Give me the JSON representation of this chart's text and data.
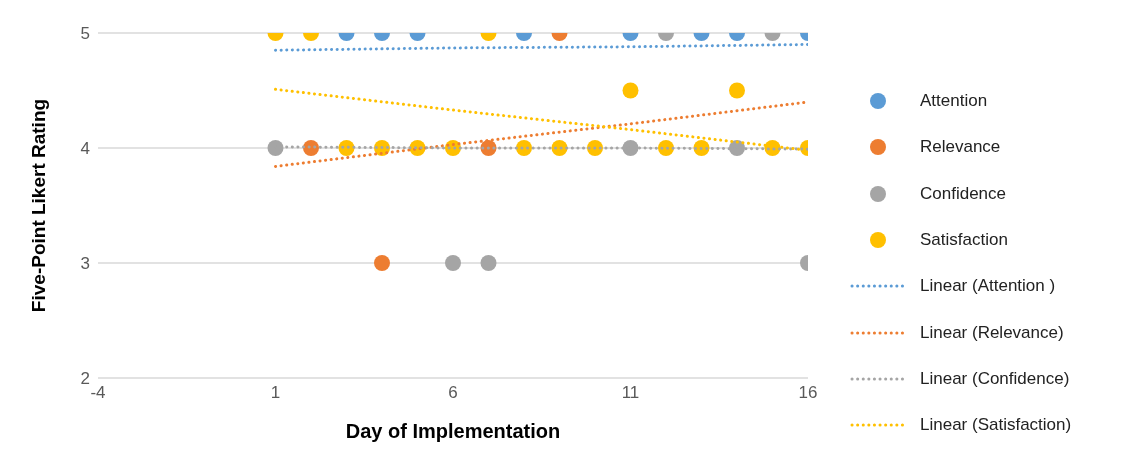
{
  "chart_data": {
    "type": "scatter",
    "xlabel": "Day of Implementation",
    "ylabel": "Five-Point Likert Rating",
    "x": [
      1,
      2,
      3,
      4,
      5,
      6,
      7,
      8,
      9,
      10,
      11,
      12,
      13,
      14,
      15,
      16
    ],
    "xlim": [
      -4,
      16
    ],
    "xticks": [
      -4,
      1,
      6,
      11,
      16
    ],
    "ylim": [
      2,
      5
    ],
    "yticks": [
      2,
      3,
      4,
      5
    ],
    "grid": "y",
    "legend": "right",
    "marker": "circle",
    "series": [
      {
        "name": "Attention",
        "color": "#5b9bd5",
        "values": [
          null,
          null,
          5,
          5,
          5,
          null,
          null,
          5,
          null,
          null,
          5,
          null,
          5,
          5,
          null,
          5
        ]
      },
      {
        "name": "Relevance",
        "color": "#ed7d31",
        "values": [
          null,
          4,
          null,
          3,
          null,
          null,
          4,
          null,
          5,
          null,
          null,
          null,
          null,
          null,
          null,
          null
        ]
      },
      {
        "name": "Confidence",
        "color": "#a5a5a5",
        "values": [
          4,
          null,
          null,
          null,
          null,
          3,
          3,
          null,
          null,
          null,
          4,
          5,
          null,
          4,
          5,
          3
        ]
      },
      {
        "name": "Satisfaction",
        "color": "#ffc000",
        "values": [
          5,
          5,
          4,
          4,
          4,
          4,
          5,
          4,
          4,
          4,
          4.5,
          4,
          4,
          4.5,
          4,
          4
        ]
      },
      {
        "name": "Linear (Attention )",
        "type": "line",
        "line_style": "dotted",
        "marker": "none",
        "color": "#5b9bd5",
        "x": [
          1,
          6,
          11,
          16
        ],
        "values": [
          4.85,
          4.87,
          4.88,
          4.9
        ]
      },
      {
        "name": "Linear (Relevance)",
        "type": "line",
        "line_style": "dotted",
        "marker": "none",
        "color": "#ed7d31",
        "x": [
          1,
          6,
          11,
          16
        ],
        "values": [
          3.84,
          4.03,
          4.21,
          4.4
        ]
      },
      {
        "name": "Linear (Confidence)",
        "type": "line",
        "line_style": "dotted",
        "marker": "none",
        "color": "#a5a5a5",
        "x": [
          1,
          6,
          11,
          16
        ],
        "values": [
          4.01,
          4.0,
          4.0,
          3.99
        ]
      },
      {
        "name": "Linear (Satisfaction)",
        "type": "line",
        "line_style": "dotted",
        "marker": "none",
        "color": "#ffc000",
        "x": [
          1,
          6,
          11,
          16
        ],
        "values": [
          4.51,
          4.33,
          4.16,
          3.98
        ]
      }
    ]
  }
}
